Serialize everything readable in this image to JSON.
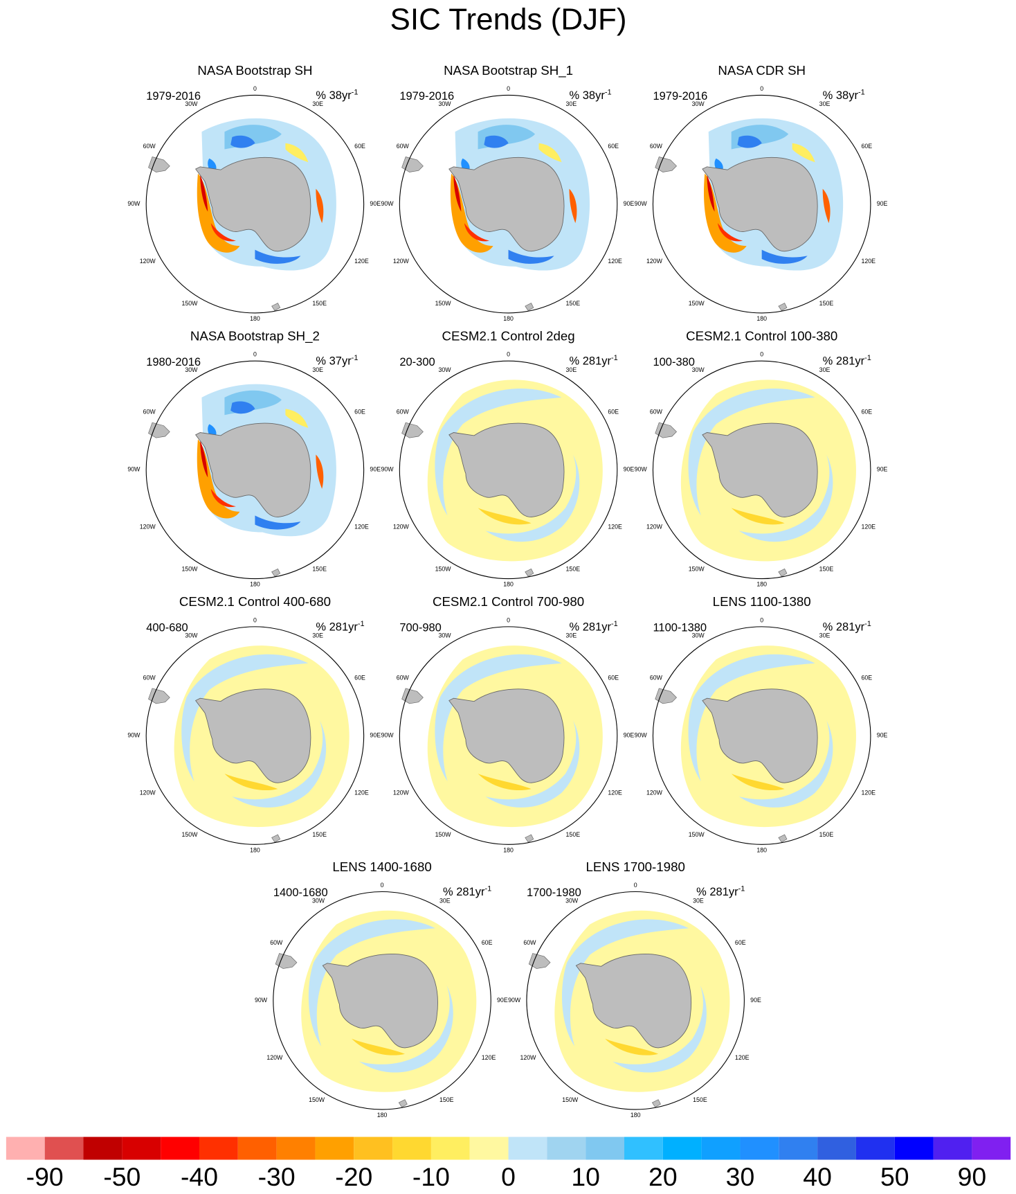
{
  "title": "SIC Trends (DJF)",
  "lon_labels": [
    "0",
    "30E",
    "60E",
    "90E",
    "120E",
    "150E",
    "180",
    "150W",
    "120W",
    "90W",
    "60W",
    "30W"
  ],
  "panels": [
    {
      "title": "NASA Bootstrap SH",
      "period": "1979-2016",
      "units": "% 38yr",
      "units_exp": "-1"
    },
    {
      "title": "NASA Bootstrap SH_1",
      "period": "1979-2016",
      "units": "% 38yr",
      "units_exp": "-1"
    },
    {
      "title": "NASA CDR SH",
      "period": "1979-2016",
      "units": "% 38yr",
      "units_exp": "-1"
    },
    {
      "title": "NASA Bootstrap SH_2",
      "period": "1980-2016",
      "units": "% 37yr",
      "units_exp": "-1"
    },
    {
      "title": "CESM2.1 Control 2deg",
      "period": "20-300",
      "units": "% 281yr",
      "units_exp": "-1"
    },
    {
      "title": "CESM2.1 Control 100-380",
      "period": "100-380",
      "units": "% 281yr",
      "units_exp": "-1"
    },
    {
      "title": "CESM2.1 Control 400-680",
      "period": "400-680",
      "units": "% 281yr",
      "units_exp": "-1"
    },
    {
      "title": "CESM2.1 Control 700-980",
      "period": "700-980",
      "units": "% 281yr",
      "units_exp": "-1"
    },
    {
      "title": "LENS 1100-1380",
      "period": "1100-1380",
      "units": "% 281yr",
      "units_exp": "-1"
    },
    {
      "title": "LENS 1400-1680",
      "period": "1400-1680",
      "units": "% 281yr",
      "units_exp": "-1"
    },
    {
      "title": "LENS 1700-1980",
      "period": "1700-1980",
      "units": "% 281yr",
      "units_exp": "-1"
    }
  ],
  "colorbar": {
    "colors": [
      "#ffb0b0",
      "#e05050",
      "#c00000",
      "#d80000",
      "#ff0000",
      "#ff3000",
      "#ff6000",
      "#ff8000",
      "#ffa000",
      "#ffc020",
      "#ffd830",
      "#ffee60",
      "#fff8a0",
      "#c0e4f8",
      "#a0d4f0",
      "#80c8f0",
      "#30c0ff",
      "#00b0ff",
      "#10a0ff",
      "#2090ff",
      "#3080f0",
      "#3060e0",
      "#2030f0",
      "#0000ff",
      "#5020f0",
      "#8020f0"
    ],
    "labels": [
      -90,
      -50,
      -40,
      -30,
      -20,
      -10,
      0,
      10,
      20,
      30,
      40,
      50,
      90
    ]
  }
}
